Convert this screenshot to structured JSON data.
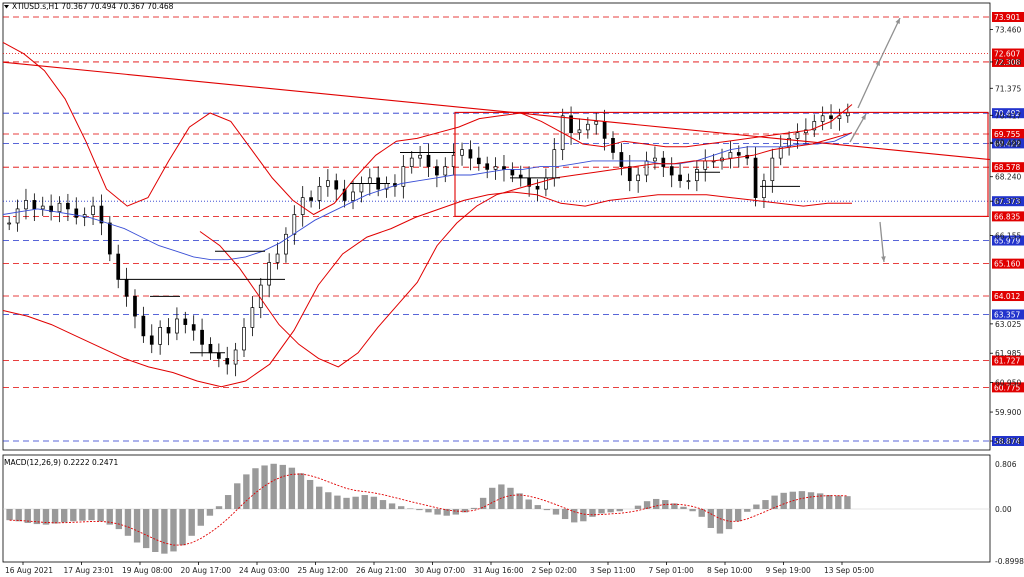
{
  "header": {
    "symbol_line": "XTIUSD.s,H1  70.367 70.494 70.367 70.468"
  },
  "macd_panel": {
    "label": "MACD(12,26,9) 0.2222 0.2471"
  },
  "colors": {
    "bollinger": "#e00000",
    "ma_blue": "#3a4fd6",
    "level_red": "#e00000",
    "level_blue": "#2233cc",
    "candle": "#000000",
    "arrow": "#909090",
    "macd_hist": "#9a9a9a",
    "macd_signal": "#e00000"
  },
  "chart_data": [
    {
      "type": "line",
      "title": "XTIUSD.s,H1",
      "ylim": [
        58.3,
        74.5
      ],
      "price_ticks": [
        "73.460",
        "72.308",
        "71.375",
        "70.417",
        "69.460",
        "69.422",
        "68.240",
        "67.373",
        "66.155",
        "63.025",
        "61.985",
        "60.950",
        "59.900",
        "58.874"
      ],
      "x_ticks": [
        "16 Aug 2021",
        "17 Aug 23:01",
        "19 Aug 08:00",
        "20 Aug 17:00",
        "24 Aug 03:00",
        "25 Aug 12:00",
        "26 Aug 21:00",
        "30 Aug 07:00",
        "31 Aug 16:00",
        "2 Sep 02:00",
        "3 Sep 11:00",
        "7 Sep 01:00",
        "8 Sep 10:00",
        "9 Sep 19:00",
        "13 Sep 05:00"
      ],
      "levels": [
        {
          "value": 73.901,
          "label": "73.901",
          "color": "red",
          "style": "dashed"
        },
        {
          "value": 72.607,
          "label": "72.607",
          "color": "red",
          "style": "dotted"
        },
        {
          "value": 72.308,
          "label": "72.308",
          "color": "red",
          "style": "dashed"
        },
        {
          "value": 70.492,
          "label": "70.492",
          "color": "blue",
          "style": "dashed"
        },
        {
          "value": 69.755,
          "label": "69.755",
          "color": "red",
          "style": "dashed"
        },
        {
          "value": 69.422,
          "label": "69.422",
          "color": "blue",
          "style": "dashed"
        },
        {
          "value": 68.578,
          "label": "68.578",
          "color": "red",
          "style": "dashed"
        },
        {
          "value": 67.373,
          "label": "67.373",
          "color": "blue",
          "style": "dotted"
        },
        {
          "value": 66.835,
          "label": "66.835",
          "color": "red",
          "style": "dashed"
        },
        {
          "value": 65.979,
          "label": "65.979",
          "color": "blue",
          "style": "dashed"
        },
        {
          "value": 65.16,
          "label": "65.160",
          "color": "red",
          "style": "dashed"
        },
        {
          "value": 64.012,
          "label": "64.012",
          "color": "red",
          "style": "dashed"
        },
        {
          "value": 63.357,
          "label": "63.357",
          "color": "blue",
          "style": "dashed"
        },
        {
          "value": 61.727,
          "label": "61.727",
          "color": "red",
          "style": "dashed"
        },
        {
          "value": 60.775,
          "label": "60.775",
          "color": "red",
          "style": "dashed"
        },
        {
          "value": 58.874,
          "label": "58.874",
          "color": "blue",
          "style": "dashed"
        }
      ],
      "series": [
        {
          "values": [
            66.6,
            67.1,
            67.4,
            67.1,
            67.2,
            67.0,
            67.3,
            67.1,
            66.8,
            66.9,
            67.2,
            66.6,
            65.5,
            64.6,
            64.0,
            63.3,
            62.6,
            62.3,
            62.9,
            62.7,
            63.2,
            63.0,
            62.8,
            62.3,
            62.0,
            61.8,
            61.6,
            62.1,
            62.9,
            63.6,
            64.4,
            65.2,
            65.5,
            66.2,
            66.9,
            67.5,
            67.4,
            67.9,
            68.1,
            67.8,
            67.4,
            67.7,
            68.0,
            68.2,
            67.8,
            68.0,
            67.9,
            68.6,
            68.9,
            69.0,
            68.6,
            68.3,
            68.6,
            69.0,
            69.2,
            68.9,
            68.7,
            68.5,
            68.6,
            68.5,
            68.3,
            68.2,
            67.9,
            67.8,
            68.2,
            69.2,
            70.4,
            69.8,
            69.9,
            70.1,
            70.2,
            69.6,
            69.1,
            68.6,
            68.1,
            68.3,
            68.8,
            68.9,
            68.6,
            68.3,
            68.1,
            68.1,
            68.5,
            68.8,
            68.8,
            68.9,
            69.1,
            69.0,
            68.9,
            67.5,
            68.1,
            68.9,
            69.3,
            69.6,
            69.8,
            69.9,
            70.2,
            70.4,
            70.3,
            70.4,
            70.5
          ]
        },
        {
          "values": [
            66.9,
            67.0,
            67.1,
            67.0,
            66.9,
            66.8,
            66.6,
            66.4,
            66.1,
            65.8,
            65.6,
            65.4,
            65.3,
            65.3,
            65.4,
            65.6,
            65.9,
            66.3,
            66.7,
            67.0,
            67.3,
            67.6,
            67.8,
            68.0,
            68.1,
            68.2,
            68.3,
            68.3,
            68.4,
            68.5,
            68.5,
            68.6,
            68.6,
            68.7,
            68.8,
            68.8,
            68.8,
            68.8,
            68.7,
            68.7,
            68.8,
            69.0,
            69.2,
            69.3,
            69.3,
            69.3,
            69.4,
            69.4,
            69.5,
            69.8
          ]
        },
        {
          "values": [
            73.0,
            72.6,
            72.0,
            71.0,
            69.5,
            67.8,
            67.2,
            67.5,
            68.8,
            70.0,
            70.5,
            70.2,
            69.2,
            68.2,
            67.4,
            66.9,
            67.3,
            68.2,
            69.0,
            69.5,
            69.6,
            69.8,
            70.0,
            70.3,
            70.4,
            70.5,
            70.2,
            69.8,
            69.4,
            69.3,
            69.5,
            69.4,
            69.3,
            69.3,
            69.4,
            69.5,
            69.6,
            69.7,
            69.8,
            69.9,
            70.2,
            70.8
          ]
        },
        {
          "values": [
            66.3,
            65.8,
            65.0,
            64.0,
            63.0,
            62.3,
            61.8,
            61.5,
            62.0,
            62.9,
            63.7,
            64.5,
            65.8,
            66.6,
            67.2,
            67.6,
            67.8,
            68.0,
            68.2,
            68.3,
            68.4,
            68.5,
            68.6,
            68.7,
            68.7,
            68.8,
            68.8,
            68.9,
            69.0,
            69.2,
            69.3,
            69.4,
            69.6,
            69.8
          ]
        },
        {
          "values": [
            63.5,
            63.3,
            63.0,
            62.6,
            62.2,
            61.8,
            61.5,
            61.3,
            61.0,
            60.8,
            61.0,
            61.6,
            62.8,
            64.4,
            65.5,
            66.1,
            66.4,
            66.8,
            67.1,
            67.4,
            67.6,
            67.7,
            67.6,
            67.3,
            67.2,
            67.4,
            67.5,
            67.6,
            67.6,
            67.6,
            67.5,
            67.4,
            67.3,
            67.2,
            67.3,
            67.3
          ]
        }
      ]
    },
    {
      "type": "bar",
      "title": "MACD(12,26,9)",
      "ylim": [
        -0.8998,
        0.806
      ],
      "ticks": [
        "0.806",
        "0.00",
        "-0.8998"
      ],
      "values": [
        -0.2,
        -0.22,
        -0.25,
        -0.27,
        -0.28,
        -0.26,
        -0.24,
        -0.22,
        -0.21,
        -0.2,
        -0.22,
        -0.28,
        -0.36,
        -0.48,
        -0.6,
        -0.7,
        -0.77,
        -0.8,
        -0.76,
        -0.65,
        -0.48,
        -0.3,
        -0.12,
        0.05,
        0.25,
        0.46,
        0.62,
        0.73,
        0.78,
        0.81,
        0.79,
        0.74,
        0.64,
        0.52,
        0.4,
        0.3,
        0.24,
        0.2,
        0.22,
        0.25,
        0.22,
        0.16,
        0.1,
        0.05,
        0.01,
        -0.02,
        -0.06,
        -0.1,
        -0.12,
        -0.1,
        -0.06,
        0.02,
        0.2,
        0.38,
        0.44,
        0.38,
        0.28,
        0.17,
        0.07,
        -0.02,
        -0.1,
        -0.18,
        -0.24,
        -0.22,
        -0.14,
        -0.08,
        -0.06,
        -0.04,
        0.0,
        0.06,
        0.14,
        0.18,
        0.16,
        0.1,
        0.04,
        -0.04,
        -0.14,
        -0.34,
        -0.44,
        -0.36,
        -0.22,
        -0.05,
        0.08,
        0.16,
        0.24,
        0.29,
        0.31,
        0.32,
        0.3,
        0.28,
        0.25,
        0.24,
        0.23
      ]
    }
  ]
}
